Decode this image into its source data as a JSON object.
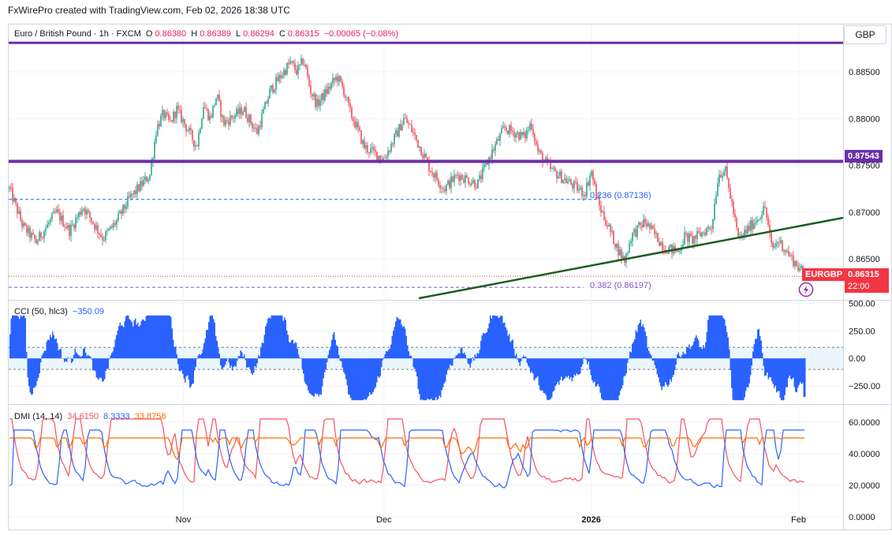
{
  "header": {
    "credit": "FxWirePro created with TradingView.com, Feb 02, 2026 18:38 UTC",
    "currency": "GBP"
  },
  "main_legend": {
    "symbol": "Euro / British Pound · 1h · FXCM",
    "open_label": "O",
    "open": "0.86380",
    "high_label": "H",
    "high": "0.86389",
    "low_label": "L",
    "low": "0.86294",
    "close_label": "C",
    "close": "0.86315",
    "change": "−0.00065 (−0.08%)"
  },
  "cci_legend": {
    "name": "CCI (50, hlc3)",
    "value": "−350.09"
  },
  "dmi_legend": {
    "name": "DMI (14, 14)",
    "plus_di": "34.6150",
    "minus_di": "8.3333",
    "adx": "33.8758"
  },
  "price_tags": {
    "resistance": "0.87543",
    "symbol": "EURGBP",
    "last_price": "0.86315",
    "countdown": "22:00"
  },
  "fib_labels": {
    "level_236": "0.236 (0.87136)",
    "level_382": "0.382 (0.86197)"
  },
  "colors": {
    "up": "#089981",
    "down": "#f23645",
    "purple": "#6a2fa8",
    "trendline": "#1b5e20",
    "cci": "#2962ff",
    "plus_di": "#f7525f",
    "minus_di": "#2962ff",
    "adx": "#ff6d00",
    "fib236": "#2962ff",
    "fib382": "#7e57c2"
  },
  "chart_data": [
    {
      "type": "candlestick",
      "title": "Euro / British Pound · 1h · FXCM",
      "x_tick_labels": [
        "Nov",
        "Dec",
        "2026",
        "Feb"
      ],
      "y_tick_labels": [
        "0.88500",
        "0.88000",
        "0.87500",
        "0.87000",
        "0.86500"
      ],
      "ylim": [
        0.8608,
        0.8893
      ],
      "horizontal_levels": [
        {
          "name": "top-line",
          "value": 0.8881
        },
        {
          "name": "resistance",
          "value": 0.87543
        },
        {
          "name": "fib-0.236",
          "value": 0.87136
        },
        {
          "name": "fib-0.382",
          "value": 0.86197
        }
      ],
      "trendline": {
        "from": {
          "date": "2025-12-01",
          "price": 0.861
        },
        "to": {
          "date": "2026-02-02",
          "price": 0.869
        }
      },
      "close_path": [
        [
          "2025-10-06",
          0.8725
        ],
        [
          "2025-10-08",
          0.8685
        ],
        [
          "2025-10-10",
          0.8668
        ],
        [
          "2025-10-13",
          0.87
        ],
        [
          "2025-10-15",
          0.868
        ],
        [
          "2025-10-17",
          0.8706
        ],
        [
          "2025-10-20",
          0.8672
        ],
        [
          "2025-10-22",
          0.869
        ],
        [
          "2025-10-24",
          0.8715
        ],
        [
          "2025-10-27",
          0.874
        ],
        [
          "2025-10-28",
          0.879
        ],
        [
          "2025-10-29",
          0.8805
        ],
        [
          "2025-10-30",
          0.8795
        ],
        [
          "2025-10-31",
          0.881
        ],
        [
          "2025-11-03",
          0.877
        ],
        [
          "2025-11-04",
          0.8815
        ],
        [
          "2025-11-05",
          0.88
        ],
        [
          "2025-11-06",
          0.8825
        ],
        [
          "2025-11-07",
          0.8795
        ],
        [
          "2025-11-10",
          0.881
        ],
        [
          "2025-11-12",
          0.8785
        ],
        [
          "2025-11-14",
          0.883
        ],
        [
          "2025-11-17",
          0.886
        ],
        [
          "2025-11-18",
          0.885
        ],
        [
          "2025-11-19",
          0.8863
        ],
        [
          "2025-11-20",
          0.883
        ],
        [
          "2025-11-21",
          0.8815
        ],
        [
          "2025-11-24",
          0.8845
        ],
        [
          "2025-11-25",
          0.883
        ],
        [
          "2025-11-26",
          0.8805
        ],
        [
          "2025-11-27",
          0.879
        ],
        [
          "2025-11-28",
          0.877
        ],
        [
          "2025-12-01",
          0.8757
        ],
        [
          "2025-12-03",
          0.8785
        ],
        [
          "2025-12-04",
          0.88
        ],
        [
          "2025-12-05",
          0.879
        ],
        [
          "2025-12-08",
          0.8745
        ],
        [
          "2025-12-10",
          0.8725
        ],
        [
          "2025-12-12",
          0.874
        ],
        [
          "2025-12-15",
          0.873
        ],
        [
          "2025-12-17",
          0.8762
        ],
        [
          "2025-12-19",
          0.879
        ],
        [
          "2025-12-22",
          0.878
        ],
        [
          "2025-12-23",
          0.8796
        ],
        [
          "2025-12-24",
          0.8765
        ],
        [
          "2025-12-26",
          0.8745
        ],
        [
          "2025-12-29",
          0.873
        ],
        [
          "2025-12-31",
          0.872
        ],
        [
          "2026-01-01",
          0.8744
        ],
        [
          "2026-01-02",
          0.871
        ],
        [
          "2026-01-05",
          0.866
        ],
        [
          "2026-01-06",
          0.8648
        ],
        [
          "2026-01-07",
          0.8675
        ],
        [
          "2026-01-09",
          0.869
        ],
        [
          "2026-01-12",
          0.8662
        ],
        [
          "2026-01-14",
          0.8658
        ],
        [
          "2026-01-15",
          0.8675
        ],
        [
          "2026-01-16",
          0.867
        ],
        [
          "2026-01-19",
          0.8685
        ],
        [
          "2026-01-20",
          0.874
        ],
        [
          "2026-01-21",
          0.8746
        ],
        [
          "2026-01-22",
          0.871
        ],
        [
          "2026-01-23",
          0.867
        ],
        [
          "2026-01-26",
          0.8695
        ],
        [
          "2026-01-27",
          0.8705
        ],
        [
          "2026-01-28",
          0.866
        ],
        [
          "2026-01-29",
          0.867
        ],
        [
          "2026-01-30",
          0.866
        ],
        [
          "2026-02-02",
          0.86315
        ]
      ]
    },
    {
      "type": "area",
      "title": "CCI (50, hlc3)",
      "y_tick_labels": [
        "500.00",
        "250.00",
        "0.00",
        "−250.00"
      ],
      "ylim": [
        -400,
        510
      ],
      "band_levels": [
        100,
        -100
      ],
      "last_value": -350.09
    },
    {
      "type": "line",
      "title": "DMI (14, 14)",
      "y_tick_labels": [
        "60.0000",
        "40.0000",
        "20.0000",
        "0.0000"
      ],
      "ylim": [
        -7.5,
        70
      ],
      "series": [
        {
          "name": "+DI",
          "last_value": 34.615
        },
        {
          "name": "−DI",
          "last_value": 8.3333
        },
        {
          "name": "ADX",
          "last_value": 33.8758
        }
      ]
    }
  ]
}
